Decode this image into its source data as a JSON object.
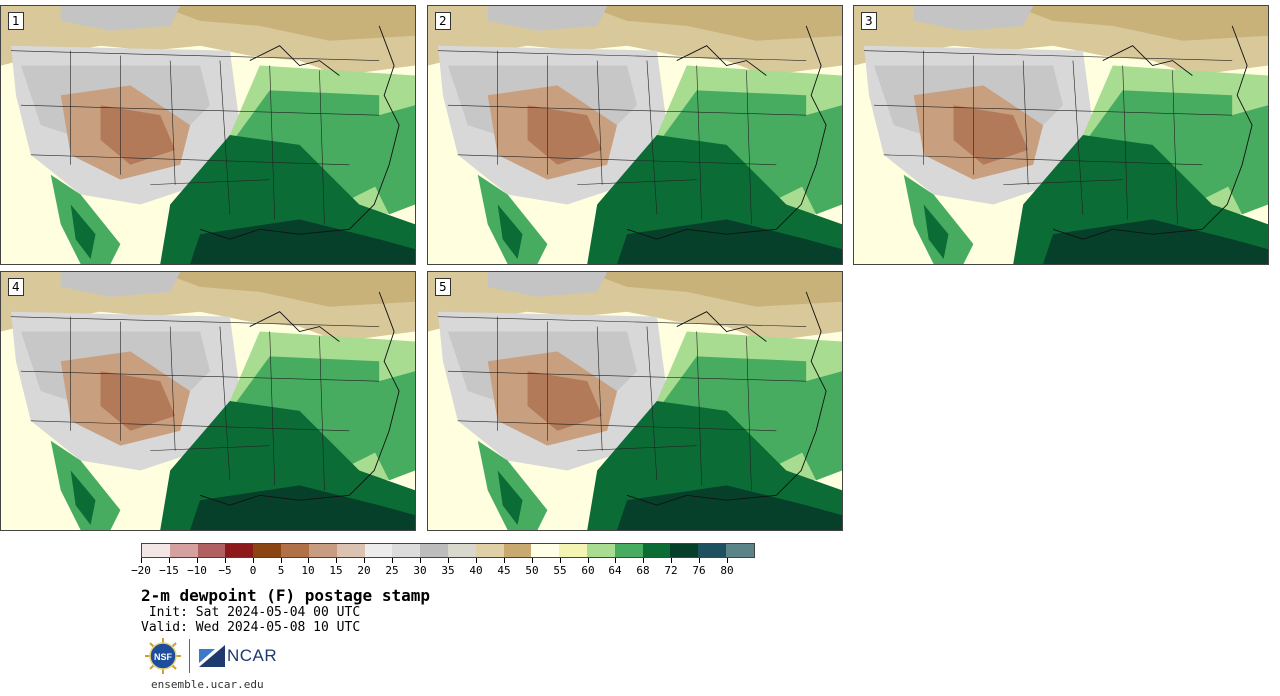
{
  "title": "2-m dewpoint (F) postage stamp",
  "init": " Init: Sat 2024-05-04 00 UTC",
  "valid": "Valid: Wed 2024-05-08 10 UTC",
  "footer": "ensemble.ucar.edu",
  "logos": {
    "nsf_text": "NSF",
    "ncar_text": "NCAR"
  },
  "panels": [
    {
      "label": "1"
    },
    {
      "label": "2"
    },
    {
      "label": "3"
    },
    {
      "label": "4"
    },
    {
      "label": "5"
    }
  ],
  "colorbar": {
    "colors": [
      "#f3e6e6",
      "#d4a0a0",
      "#b06060",
      "#8c1a1a",
      "#8b4513",
      "#b07048",
      "#c89c80",
      "#dcc2b0",
      "#ececec",
      "#dcdcdc",
      "#bcbcbc",
      "#d8d8cc",
      "#e0d0a8",
      "#c8aa70",
      "#ffffe8",
      "#f4f4b4",
      "#a8dc90",
      "#48ac60",
      "#0c6c36",
      "#06402a",
      "#1e5060",
      "#5a8488"
    ],
    "tick_labels": [
      "−20",
      "−15",
      "−10",
      "−5",
      "0",
      "5",
      "10",
      "15",
      "20",
      "25",
      "30",
      "35",
      "40",
      "45",
      "50",
      "55",
      "60",
      "64",
      "68",
      "72",
      "76",
      "80"
    ]
  }
}
